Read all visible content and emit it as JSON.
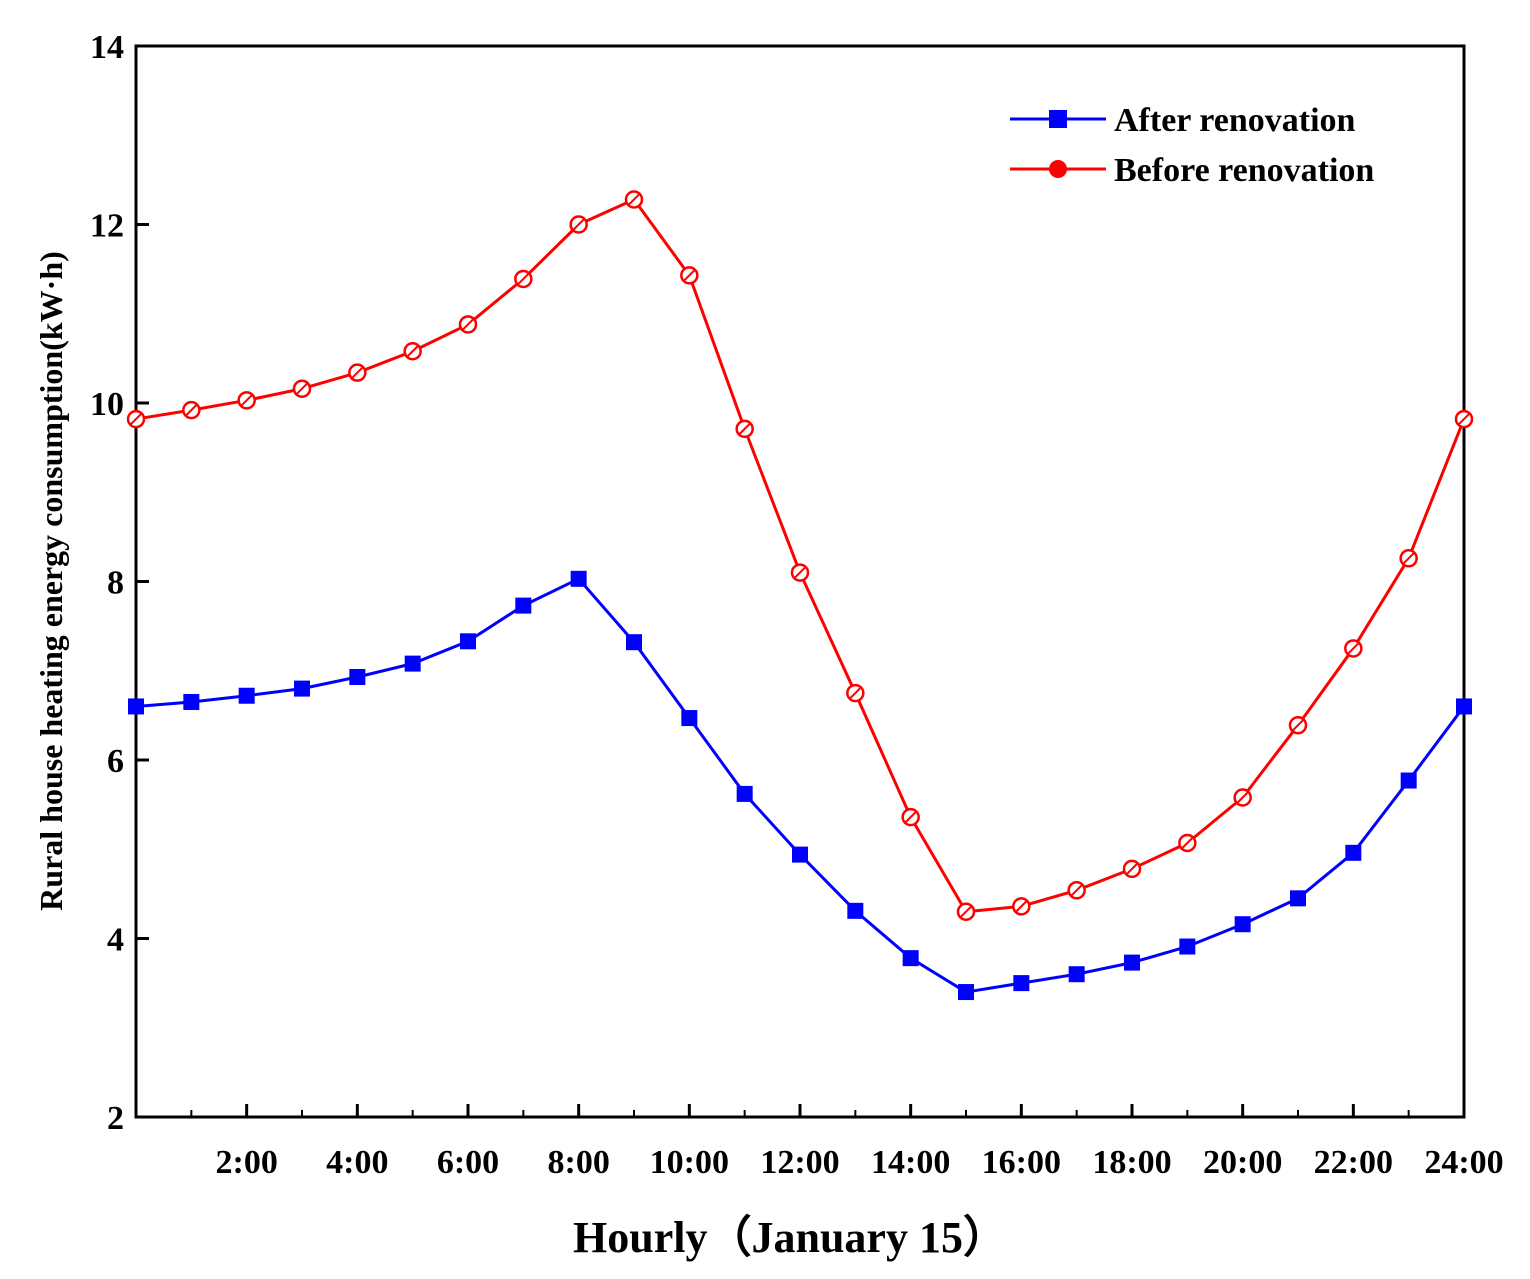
{
  "chart_data": {
    "type": "line",
    "title": "",
    "xlabel": "Hourly（January 15）",
    "ylabel": "Rural house heating energy consumption(kW·h)",
    "xlim": [
      0,
      24
    ],
    "ylim": [
      2,
      14
    ],
    "x_ticks": [
      0,
      2,
      4,
      6,
      8,
      10,
      12,
      14,
      16,
      18,
      20,
      22,
      24
    ],
    "x_tick_labels": [
      "",
      "2:00",
      "4:00",
      "6:00",
      "8:00",
      "10:00",
      "12:00",
      "14:00",
      "16:00",
      "18:00",
      "20:00",
      "22:00",
      "24:00"
    ],
    "y_ticks": [
      2,
      4,
      6,
      8,
      10,
      12,
      14
    ],
    "y_tick_labels": [
      "2",
      "4",
      "6",
      "8",
      "10",
      "12",
      "14"
    ],
    "grid": false,
    "legend_position": "top-right",
    "x": [
      0,
      1,
      2,
      3,
      4,
      5,
      6,
      7,
      8,
      9,
      10,
      11,
      12,
      13,
      14,
      15,
      16,
      17,
      18,
      19,
      20,
      21,
      22,
      23,
      24
    ],
    "series": [
      {
        "name": "After renovation",
        "color": "#0000ff",
        "marker": "square",
        "values": [
          6.6,
          6.65,
          6.72,
          6.8,
          6.93,
          7.08,
          7.33,
          7.73,
          8.03,
          7.32,
          6.47,
          5.62,
          4.94,
          4.31,
          3.78,
          3.4,
          3.5,
          3.6,
          3.73,
          3.91,
          4.16,
          4.45,
          4.96,
          5.77,
          6.6
        ]
      },
      {
        "name": "Before renovation",
        "color": "#ff0000",
        "marker": "circle",
        "values": [
          9.82,
          9.92,
          10.03,
          10.16,
          10.34,
          10.58,
          10.88,
          11.39,
          12.0,
          12.28,
          11.43,
          9.71,
          8.1,
          6.75,
          5.36,
          4.3,
          4.36,
          4.54,
          4.78,
          5.07,
          5.58,
          6.39,
          7.25,
          8.26,
          9.82
        ]
      }
    ]
  }
}
